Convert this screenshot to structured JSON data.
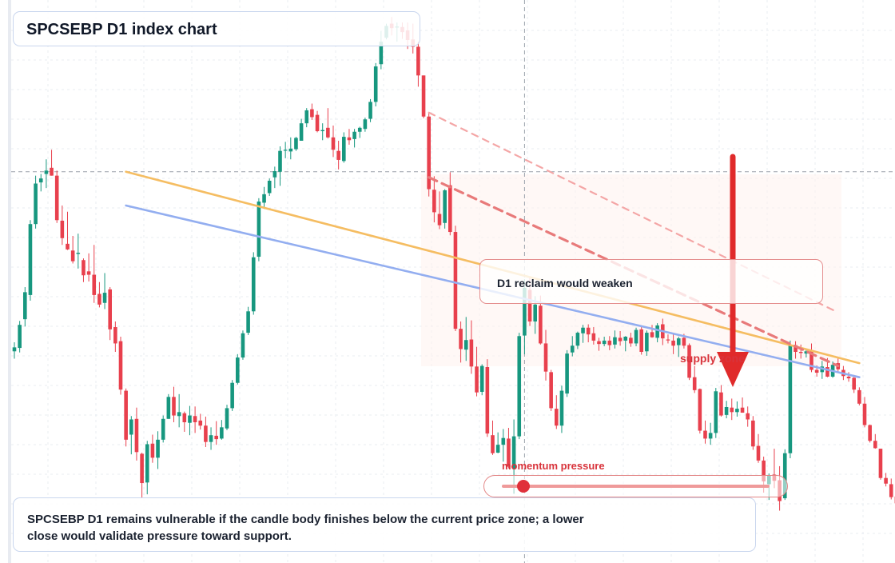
{
  "title": "SPCSEBP D1 index chart",
  "callout": {
    "text": "D1 reclaim would weaken"
  },
  "note": {
    "text": "SPCSEBP D1 remains vulnerable if the candle body finishes below the current price zone; a lower close would validate pressure toward support."
  },
  "momentum": {
    "label": "momentum pressure",
    "level": 0.08
  },
  "supply": {
    "label": "supply zone"
  },
  "colors": {
    "up": "#17977f",
    "down": "#e8404d",
    "line_orange": "#f5bd62",
    "line_blue": "#93aef0",
    "arrow": "#e02a2a"
  },
  "chart_data": {
    "type": "candlestick",
    "ylim": [
      0,
      100
    ],
    "grid": true,
    "crosshair": {
      "x": 96,
      "y": 69.5
    },
    "trendlines": [
      {
        "style": "solid",
        "color": "orange",
        "from": [
          21,
          69.5
        ],
        "to": [
          159,
          35.5
        ]
      },
      {
        "style": "solid",
        "color": "blue",
        "from": [
          21,
          63.5
        ],
        "to": [
          159,
          33
        ]
      },
      {
        "style": "dashed",
        "color": "light-red",
        "from": [
          78,
          80
        ],
        "to": [
          155,
          44.5
        ]
      },
      {
        "style": "dashed",
        "color": "red",
        "from": [
          78,
          68.5
        ],
        "to": [
          155,
          35
        ]
      }
    ],
    "candles": [
      [
        37.6,
        39.2,
        36.3,
        38.3
      ],
      [
        38.2,
        43.0,
        37.4,
        42.3
      ],
      [
        43.3,
        49.0,
        42.0,
        48.1
      ],
      [
        47.6,
        60.9,
        46.6,
        60.2
      ],
      [
        60.2,
        68.8,
        59.4,
        67.4
      ],
      [
        67.6,
        69.1,
        66.0,
        68.3
      ],
      [
        69.1,
        71.7,
        66.6,
        69.7
      ],
      [
        70.2,
        73.4,
        68.8,
        68.8
      ],
      [
        68.8,
        69.7,
        60.4,
        60.9
      ],
      [
        60.8,
        63.5,
        56.5,
        57.7
      ],
      [
        56.7,
        62.4,
        55.6,
        55.7
      ],
      [
        55.5,
        58.1,
        53.2,
        53.6
      ],
      [
        54.9,
        58.5,
        52.3,
        55.1
      ],
      [
        53.8,
        54.1,
        49.9,
        51.1
      ],
      [
        51.8,
        55.0,
        50.0,
        51.2
      ],
      [
        51.2,
        56.5,
        46.2,
        47.6
      ],
      [
        47.8,
        49.9,
        45.4,
        45.9
      ],
      [
        46.2,
        51.5,
        45.1,
        48.0
      ],
      [
        48.6,
        49.0,
        39.6,
        41.5
      ],
      [
        41.9,
        42.9,
        37.5,
        39.0
      ],
      [
        39.4,
        40.2,
        29.9,
        30.8
      ],
      [
        30.6,
        31.0,
        20.7,
        21.9
      ],
      [
        22.8,
        26.1,
        19.3,
        25.5
      ],
      [
        25.6,
        27.6,
        18.2,
        19.7
      ],
      [
        19.4,
        19.6,
        11.5,
        14.2
      ],
      [
        14.3,
        21.7,
        12.2,
        21.1
      ],
      [
        21.2,
        22.8,
        17.8,
        18.7
      ],
      [
        18.7,
        23.4,
        16.7,
        21.9
      ],
      [
        21.9,
        26.2,
        21.4,
        25.6
      ],
      [
        25.6,
        30.0,
        25.6,
        29.5
      ],
      [
        29.5,
        31.3,
        25.0,
        26.2
      ],
      [
        26.1,
        30.0,
        24.1,
        26.8
      ],
      [
        26.6,
        26.9,
        23.3,
        25.0
      ],
      [
        24.9,
        27.9,
        22.7,
        26.2
      ],
      [
        26.1,
        27.8,
        23.1,
        25.0
      ],
      [
        25.3,
        26.5,
        23.7,
        24.4
      ],
      [
        24.4,
        26.0,
        20.6,
        21.5
      ],
      [
        21.5,
        24.1,
        20.1,
        22.7
      ],
      [
        22.6,
        25.2,
        21.0,
        22.0
      ],
      [
        22.1,
        25.4,
        21.9,
        24.1
      ],
      [
        23.9,
        28.1,
        23.6,
        27.5
      ],
      [
        27.5,
        32.5,
        27.0,
        32.0
      ],
      [
        32.0,
        37.1,
        31.7,
        36.5
      ],
      [
        36.5,
        41.3,
        36.1,
        40.8
      ],
      [
        40.9,
        45.5,
        40.5,
        44.7
      ],
      [
        44.7,
        55.2,
        44.1,
        54.3
      ],
      [
        54.4,
        64.8,
        53.6,
        64.2
      ],
      [
        64.0,
        66.8,
        62.9,
        65.5
      ],
      [
        65.7,
        68.3,
        65.2,
        67.9
      ],
      [
        68.5,
        70.4,
        66.6,
        69.6
      ],
      [
        69.5,
        74.0,
        67.0,
        73.2
      ],
      [
        73.3,
        74.8,
        71.9,
        73.4
      ],
      [
        73.1,
        75.6,
        71.7,
        73.6
      ],
      [
        73.5,
        75.7,
        73.2,
        75.5
      ],
      [
        75.0,
        78.9,
        75.0,
        78.1
      ],
      [
        78.1,
        80.8,
        77.4,
        80.4
      ],
      [
        80.6,
        81.6,
        78.7,
        79.2
      ],
      [
        79.6,
        80.3,
        76.5,
        76.7
      ],
      [
        76.7,
        78.1,
        75.1,
        76.9
      ],
      [
        77.3,
        80.8,
        75.4,
        75.6
      ],
      [
        75.6,
        77.7,
        72.1,
        73.4
      ],
      [
        73.2,
        75.0,
        69.9,
        71.6
      ],
      [
        71.4,
        76.5,
        71.1,
        75.7
      ],
      [
        75.6,
        77.1,
        74.3,
        75.1
      ],
      [
        75.3,
        77.1,
        73.8,
        76.6
      ],
      [
        76.6,
        77.5,
        75.5,
        77.3
      ],
      [
        77.1,
        79.1,
        76.6,
        78.8
      ],
      [
        78.9,
        82.4,
        78.3,
        81.9
      ],
      [
        81.9,
        88.8,
        81.1,
        88.2
      ],
      [
        88.6,
        94.5,
        87.7,
        92.6
      ],
      [
        93.3,
        95.8,
        93.0,
        95.4
      ],
      [
        95.8,
        97.0,
        93.7,
        95.0
      ],
      [
        95.1,
        96.0,
        92.6,
        95.3
      ],
      [
        95.2,
        96.0,
        93.1,
        94.3
      ],
      [
        94.6,
        96.0,
        91.3,
        92.9
      ],
      [
        93.0,
        95.8,
        90.5,
        91.7
      ],
      [
        91.7,
        92.6,
        84.6,
        86.6
      ],
      [
        86.6,
        86.6,
        79.0,
        79.3
      ],
      [
        79.3,
        80.1,
        65.1,
        66.4
      ],
      [
        66.3,
        68.7,
        60.5,
        62.3
      ],
      [
        62.0,
        66.0,
        59.3,
        60.0
      ],
      [
        60.4,
        66.4,
        59.4,
        66.2
      ],
      [
        67.1,
        69.4,
        58.2,
        58.8
      ],
      [
        58.8,
        59.9,
        41.2,
        41.6
      ],
      [
        41.6,
        42.9,
        35.6,
        38.0
      ],
      [
        37.9,
        43.7,
        35.9,
        39.6
      ],
      [
        39.7,
        43.1,
        33.6,
        34.9
      ],
      [
        34.9,
        38.4,
        29.6,
        30.3
      ],
      [
        30.4,
        35.3,
        29.8,
        35.0
      ],
      [
        34.8,
        36.2,
        22.4,
        23.0
      ],
      [
        22.7,
        25.3,
        19.2,
        19.5
      ],
      [
        19.6,
        23.2,
        19.5,
        21.0
      ],
      [
        21.0,
        23.8,
        18.0,
        22.2
      ],
      [
        22.1,
        24.0,
        16.8,
        17.1
      ],
      [
        16.8,
        25.5,
        12.3,
        22.5
      ],
      [
        22.5,
        40.9,
        22.0,
        40.3
      ],
      [
        40.4,
        50.4,
        37.1,
        48.9
      ],
      [
        48.5,
        50.9,
        42.1,
        42.9
      ],
      [
        42.9,
        47.4,
        40.7,
        45.9
      ],
      [
        45.7,
        47.5,
        38.8,
        39.0
      ],
      [
        39.0,
        41.4,
        32.4,
        34.0
      ],
      [
        33.9,
        34.3,
        27.0,
        27.5
      ],
      [
        27.4,
        29.8,
        23.8,
        24.4
      ],
      [
        24.4,
        31.5,
        23.1,
        30.6
      ],
      [
        30.1,
        37.8,
        29.5,
        37.2
      ],
      [
        37.4,
        40.3,
        36.7,
        38.6
      ],
      [
        38.6,
        41.1,
        38.0,
        40.9
      ],
      [
        40.8,
        42.3,
        39.1,
        41.8
      ],
      [
        41.8,
        42.4,
        39.2,
        40.6
      ],
      [
        40.8,
        41.9,
        38.8,
        39.5
      ],
      [
        39.4,
        40.0,
        37.7,
        38.9
      ],
      [
        38.9,
        40.2,
        38.5,
        39.5
      ],
      [
        39.5,
        40.3,
        37.8,
        38.7
      ],
      [
        38.8,
        41.3,
        38.1,
        40.1
      ],
      [
        40.0,
        41.2,
        38.6,
        39.4
      ],
      [
        39.5,
        40.3,
        37.6,
        40.2
      ],
      [
        40.0,
        40.9,
        38.4,
        39.0
      ],
      [
        39.0,
        41.8,
        38.5,
        41.4
      ],
      [
        41.5,
        42.0,
        37.0,
        37.5
      ],
      [
        37.6,
        41.3,
        36.8,
        40.9
      ],
      [
        41.0,
        42.3,
        40.0,
        40.1
      ],
      [
        40.0,
        42.6,
        39.2,
        42.2
      ],
      [
        42.4,
        43.4,
        38.7,
        39.9
      ],
      [
        39.7,
        40.6,
        39.0,
        39.6
      ],
      [
        39.5,
        40.6,
        37.1,
        38.6
      ],
      [
        38.7,
        40.2,
        36.6,
        39.9
      ],
      [
        40.0,
        40.7,
        38.1,
        38.6
      ],
      [
        38.7,
        39.0,
        32.5,
        32.9
      ],
      [
        33.0,
        35.0,
        30.2,
        30.7
      ],
      [
        30.9,
        31.0,
        23.0,
        23.5
      ],
      [
        23.5,
        25.3,
        21.2,
        22.1
      ],
      [
        22.1,
        24.9,
        21.0,
        23.1
      ],
      [
        23.1,
        31.1,
        22.2,
        30.5
      ],
      [
        30.3,
        31.6,
        26.0,
        26.2
      ],
      [
        26.3,
        28.8,
        25.7,
        27.7
      ],
      [
        27.6,
        29.2,
        25.4,
        26.8
      ],
      [
        26.8,
        28.7,
        26.0,
        27.4
      ],
      [
        27.6,
        29.4,
        26.7,
        26.7
      ],
      [
        26.6,
        27.8,
        24.2,
        25.5
      ],
      [
        25.3,
        26.1,
        20.1,
        20.7
      ],
      [
        20.8,
        22.9,
        17.8,
        18.2
      ],
      [
        18.2,
        18.9,
        12.5,
        14.5
      ],
      [
        14.0,
        15.9,
        11.2,
        15.5
      ],
      [
        15.7,
        20.3,
        13.3,
        14.6
      ],
      [
        14.7,
        17.2,
        9.3,
        11.0
      ],
      [
        11.5,
        20.2,
        11.2,
        19.5
      ],
      [
        19.5,
        39.5,
        18.6,
        38.7
      ],
      [
        38.7,
        39.4,
        36.3,
        37.5
      ],
      [
        37.5,
        38.8,
        36.3,
        37.3
      ],
      [
        37.2,
        38.1,
        36.5,
        37.6
      ],
      [
        37.6,
        39.0,
        33.9,
        34.3
      ],
      [
        34.3,
        35.1,
        33.1,
        33.8
      ],
      [
        33.9,
        35.9,
        32.7,
        34.9
      ],
      [
        34.8,
        36.4,
        33.0,
        33.1
      ],
      [
        33.1,
        35.8,
        32.9,
        35.2
      ],
      [
        35.5,
        36.6,
        34.0,
        34.4
      ],
      [
        34.3,
        35.0,
        32.5,
        33.2
      ],
      [
        33.1,
        33.9,
        32.2,
        32.8
      ],
      [
        32.9,
        33.4,
        30.2,
        30.8
      ],
      [
        30.7,
        31.2,
        28.0,
        28.3
      ],
      [
        28.3,
        29.5,
        24.1,
        24.5
      ],
      [
        24.5,
        24.6,
        21.4,
        21.7
      ],
      [
        21.7,
        22.9,
        20.3,
        20.4
      ],
      [
        20.3,
        20.3,
        14.8,
        15.1
      ],
      [
        15.1,
        16.0,
        13.6,
        14.1
      ],
      [
        14.0,
        15.0,
        11.3,
        11.7
      ],
      [
        11.8,
        12.1,
        10.3,
        10.6
      ],
      [
        10.6,
        11.4,
        9.8,
        10.0
      ],
      [
        9.9,
        11.2,
        7.8,
        8.4
      ],
      [
        8.5,
        10.8,
        7.0,
        10.3
      ],
      [
        10.5,
        10.9,
        6.5,
        7.1
      ],
      [
        7.0,
        8.0,
        5.7,
        6.2
      ],
      [
        6.2,
        8.6,
        5.4,
        8.4
      ],
      [
        8.4,
        9.5,
        6.2,
        6.6
      ],
      [
        6.6,
        9.4,
        5.6,
        7.7
      ],
      [
        7.7,
        9.1,
        6.9,
        7.0
      ],
      [
        7.0,
        8.7,
        6.1,
        8.1
      ],
      [
        8.2,
        8.8,
        7.5,
        8.8
      ]
    ]
  }
}
